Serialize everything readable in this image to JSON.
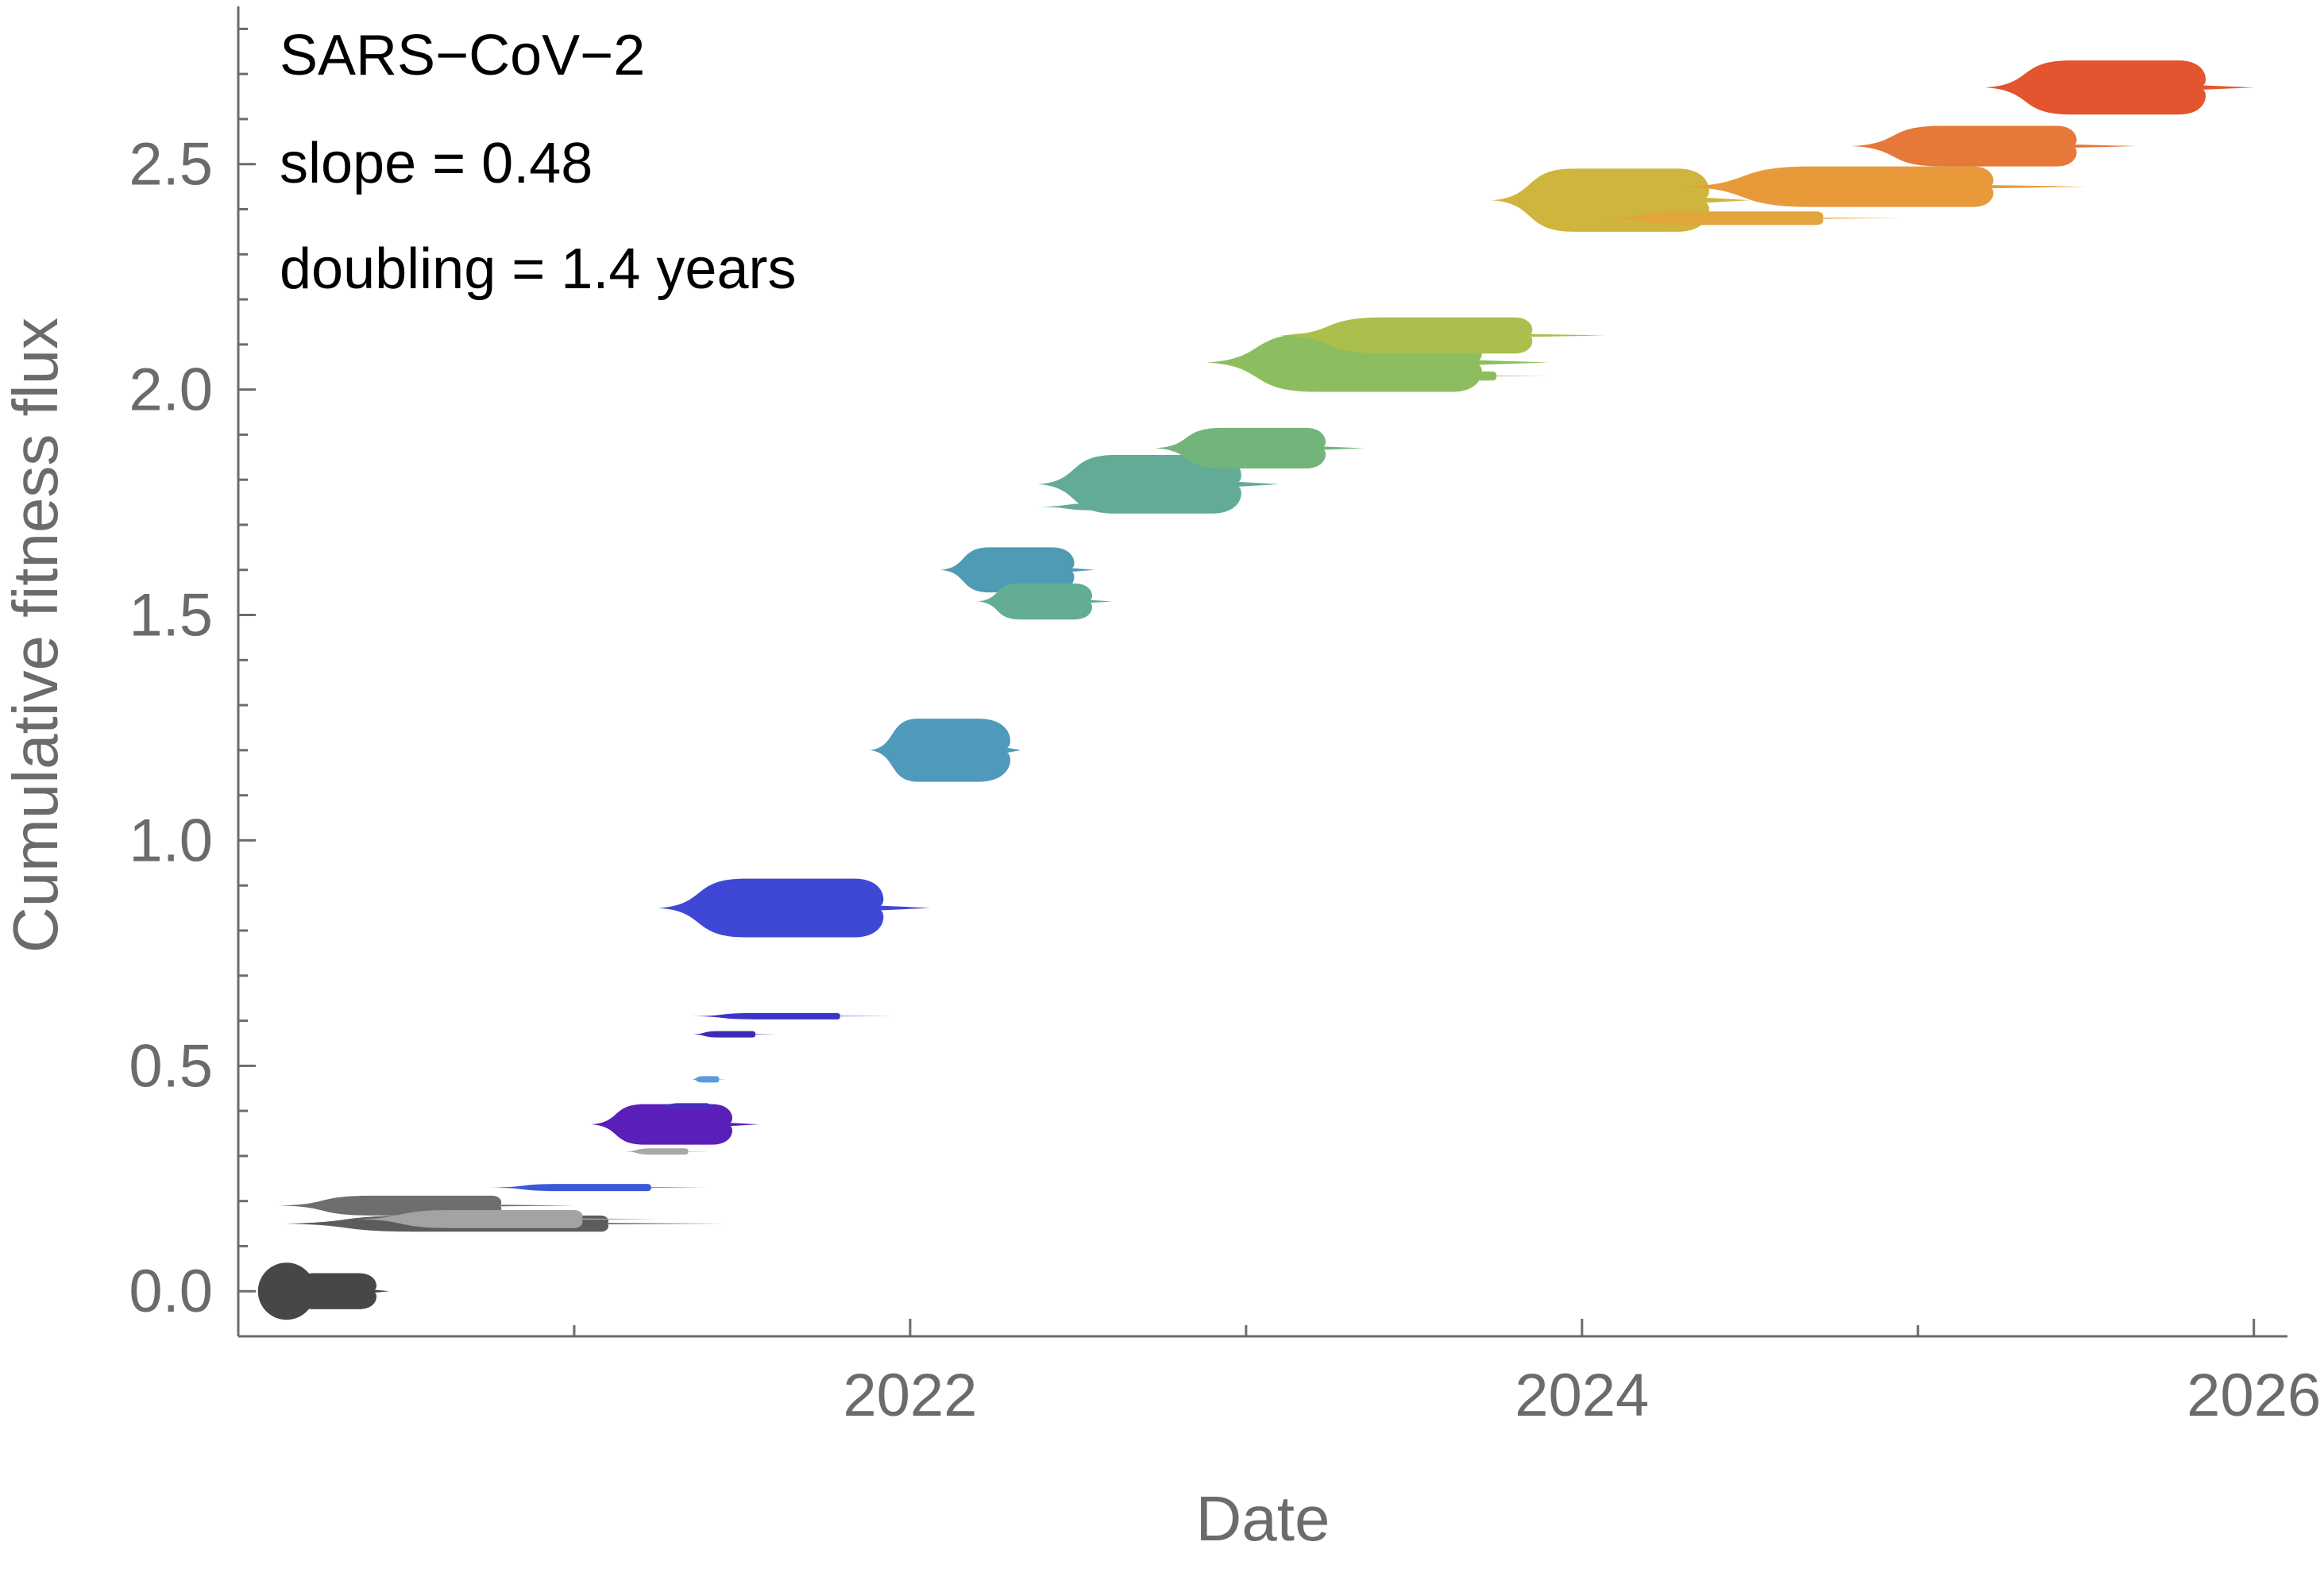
{
  "chart_data": {
    "type": "scatter",
    "title": "",
    "xlabel": "Date",
    "ylabel": "Cumulative fitness flux",
    "xlim": [
      2020.0,
      2026.1
    ],
    "ylim": [
      -0.1,
      2.85
    ],
    "x_ticks": [
      2022,
      2024,
      2026
    ],
    "y_ticks": [
      0.0,
      0.5,
      1.0,
      1.5,
      2.0,
      2.5
    ],
    "x_tick_labels": [
      "2022",
      "2024",
      "2026"
    ],
    "y_tick_labels": [
      "0.0",
      "0.5",
      "1.0",
      "1.5",
      "2.0",
      "2.5"
    ],
    "annotations": [
      "SARS−CoV−2",
      "slope = 0.48",
      "doubling = 1.4 years"
    ],
    "clades": [
      {
        "name": "c01",
        "x0": 2020.12,
        "x1": 2020.45,
        "y": 0.0,
        "w": 0.04,
        "color": "#474747"
      },
      {
        "name": "c02",
        "x0": 2020.12,
        "x1": 2021.0,
        "y": 0.19,
        "w": 0.022,
        "color": "#6e6e6e"
      },
      {
        "name": "c03",
        "x0": 2020.12,
        "x1": 2021.45,
        "y": 0.15,
        "w": 0.018,
        "color": "#5c5c5c"
      },
      {
        "name": "c04",
        "x0": 2020.35,
        "x1": 2021.25,
        "y": 0.16,
        "w": 0.02,
        "color": "#a3a3a3"
      },
      {
        "name": "c05",
        "x0": 2020.75,
        "x1": 2021.4,
        "y": 0.23,
        "w": 0.008,
        "color": "#3c58d8"
      },
      {
        "name": "c06",
        "x0": 2021.05,
        "x1": 2021.55,
        "y": 0.37,
        "w": 0.045,
        "color": "#5a1fb8"
      },
      {
        "name": "c07",
        "x0": 2021.15,
        "x1": 2021.4,
        "y": 0.31,
        "w": 0.006,
        "color": "#a8a8a8"
      },
      {
        "name": "c08",
        "x0": 2021.25,
        "x1": 2021.45,
        "y": 0.41,
        "w": 0.005,
        "color": "#4a2bbf"
      },
      {
        "name": "c09",
        "x0": 2021.35,
        "x1": 2021.45,
        "y": 0.47,
        "w": 0.003,
        "color": "#5a9be0"
      },
      {
        "name": "c10",
        "x0": 2021.35,
        "x1": 2021.6,
        "y": 0.57,
        "w": 0.005,
        "color": "#3c2ab8"
      },
      {
        "name": "c11",
        "x0": 2021.35,
        "x1": 2021.95,
        "y": 0.61,
        "w": 0.006,
        "color": "#3b36c8"
      },
      {
        "name": "c12",
        "x0": 2021.25,
        "x1": 2022.06,
        "y": 0.85,
        "w": 0.065,
        "color": "#3f48d4"
      },
      {
        "name": "c13",
        "x0": 2021.88,
        "x1": 2022.33,
        "y": 1.2,
        "w": 0.07,
        "color": "#4f9abb"
      },
      {
        "name": "c14",
        "x0": 2022.09,
        "x1": 2022.55,
        "y": 1.6,
        "w": 0.05,
        "color": "#4e9bb3"
      },
      {
        "name": "c15",
        "x0": 2022.2,
        "x1": 2022.6,
        "y": 1.53,
        "w": 0.04,
        "color": "#63ad95"
      },
      {
        "name": "c16",
        "x0": 2022.38,
        "x1": 2023.1,
        "y": 1.79,
        "w": 0.065,
        "color": "#62ac97"
      },
      {
        "name": "c17",
        "x0": 2022.38,
        "x1": 2022.95,
        "y": 1.74,
        "w": 0.008,
        "color": "#62ac97"
      },
      {
        "name": "c18",
        "x0": 2022.73,
        "x1": 2023.35,
        "y": 1.87,
        "w": 0.045,
        "color": "#73b47a"
      },
      {
        "name": "c19",
        "x0": 2022.88,
        "x1": 2023.9,
        "y": 2.06,
        "w": 0.065,
        "color": "#8cbe60"
      },
      {
        "name": "c20",
        "x0": 2023.3,
        "x1": 2023.9,
        "y": 2.03,
        "w": 0.01,
        "color": "#8cbe60"
      },
      {
        "name": "c21",
        "x0": 2023.1,
        "x1": 2024.07,
        "y": 2.12,
        "w": 0.04,
        "color": "#abbf4c"
      },
      {
        "name": "c22",
        "x0": 2023.73,
        "x1": 2024.5,
        "y": 2.42,
        "w": 0.07,
        "color": "#cfb43d"
      },
      {
        "name": "c23",
        "x0": 2024.05,
        "x1": 2024.95,
        "y": 2.38,
        "w": 0.015,
        "color": "#e2a53b"
      },
      {
        "name": "c24",
        "x0": 2024.3,
        "x1": 2025.5,
        "y": 2.45,
        "w": 0.045,
        "color": "#e89a3a"
      },
      {
        "name": "c25",
        "x0": 2024.8,
        "x1": 2025.65,
        "y": 2.54,
        "w": 0.045,
        "color": "#e6783a"
      },
      {
        "name": "c26",
        "x0": 2025.2,
        "x1": 2026.0,
        "y": 2.67,
        "w": 0.06,
        "color": "#e3552e"
      }
    ]
  }
}
